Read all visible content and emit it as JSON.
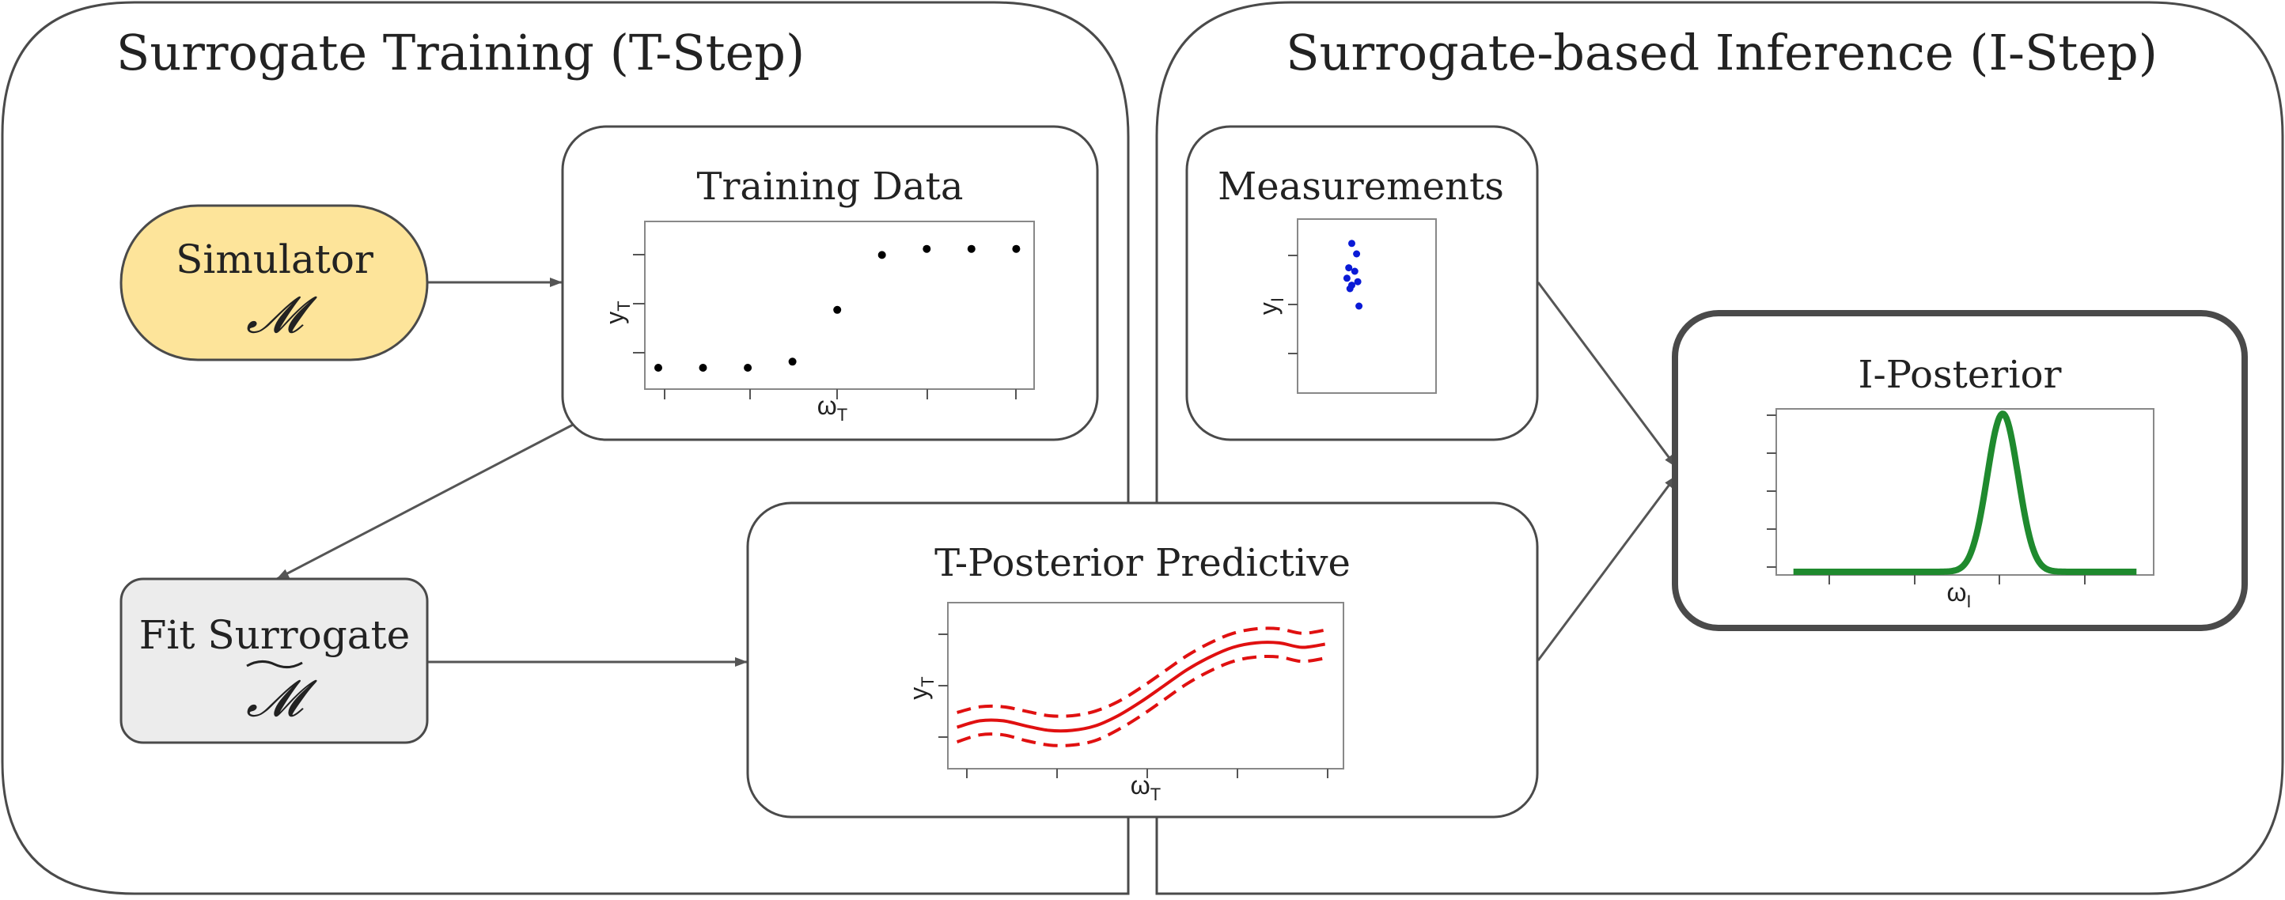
{
  "sections": {
    "training_title": "Surrogate Training (T-Step)",
    "inference_title": "Surrogate-based Inference (I-Step)"
  },
  "nodes": {
    "simulator": {
      "label": "Simulator",
      "symbol": "𝓜",
      "fill": "#fde49a"
    },
    "fit_surrogate": {
      "label": "Fit Surrogate",
      "symbol": "𝓜",
      "fill": "#ececec"
    },
    "training_data": {
      "title": "Training Data",
      "xlabel": "ω",
      "xsub": "T",
      "ylabel": "y",
      "ysub": "T"
    },
    "t_posterior": {
      "title": "T-Posterior Predictive",
      "xlabel": "ω",
      "xsub": "T",
      "ylabel": "y",
      "ysub": "T"
    },
    "measurements": {
      "title": "Measurements",
      "ylabel": "y",
      "ysub": "I"
    },
    "i_posterior": {
      "title": "I-Posterior",
      "xlabel": "ω",
      "xsub": "I"
    }
  },
  "colors": {
    "training_points": "#000000",
    "measurement_points": "#0a1ad6",
    "t_posterior_line": "#e01010",
    "i_posterior_line": "#1f8a2e",
    "box_stroke": "#4a4a4a",
    "arrow": "#555555"
  },
  "chart_data": [
    {
      "name": "training-data",
      "type": "scatter",
      "x": [
        0,
        1,
        2,
        3,
        4,
        5,
        6,
        7,
        8
      ],
      "y": [
        0.0,
        0.0,
        0.0,
        0.1,
        0.95,
        1.85,
        1.95,
        1.95,
        1.95
      ],
      "xlim": [
        -0.3,
        8.4
      ],
      "ylim": [
        -0.35,
        2.4
      ]
    },
    {
      "name": "measurements",
      "type": "scatter",
      "x": [
        0.5,
        0.58,
        0.45,
        0.55,
        0.42,
        0.6,
        0.5,
        0.47,
        0.62
      ],
      "y": [
        0.86,
        0.8,
        0.72,
        0.7,
        0.66,
        0.64,
        0.62,
        0.6,
        0.5
      ],
      "xlim": [
        -0.4,
        1.9
      ],
      "ylim": [
        0.0,
        1.0
      ]
    },
    {
      "name": "t-posterior-predictive",
      "type": "line",
      "x": [
        0.0,
        0.5,
        1.0,
        1.5,
        2.0,
        2.5,
        3.0,
        3.5,
        4.0,
        4.5,
        5.0,
        5.5,
        6.0,
        6.5,
        7.0,
        7.5,
        8.0
      ],
      "series": [
        {
          "values": [
            0.1,
            0.2,
            0.2,
            0.12,
            0.05,
            0.05,
            0.12,
            0.28,
            0.5,
            0.75,
            1.0,
            1.2,
            1.35,
            1.42,
            1.42,
            1.35,
            1.4
          ]
        },
        {
          "values": [
            0.33,
            0.42,
            0.42,
            0.35,
            0.28,
            0.28,
            0.35,
            0.5,
            0.72,
            0.97,
            1.22,
            1.42,
            1.57,
            1.64,
            1.64,
            1.57,
            1.62
          ]
        },
        {
          "values": [
            -0.13,
            -0.02,
            -0.02,
            -0.11,
            -0.18,
            -0.18,
            -0.11,
            0.06,
            0.28,
            0.53,
            0.78,
            0.98,
            1.13,
            1.2,
            1.2,
            1.13,
            1.18
          ]
        }
      ],
      "xlim": [
        -0.2,
        8.4
      ],
      "ylim": [
        -0.55,
        2.05
      ]
    },
    {
      "name": "i-posterior",
      "type": "line",
      "mean": 0.61,
      "sd": 0.045,
      "peak": 1.0,
      "xlim": [
        -0.05,
        1.05
      ],
      "ylim": [
        -0.02,
        1.03
      ]
    }
  ]
}
